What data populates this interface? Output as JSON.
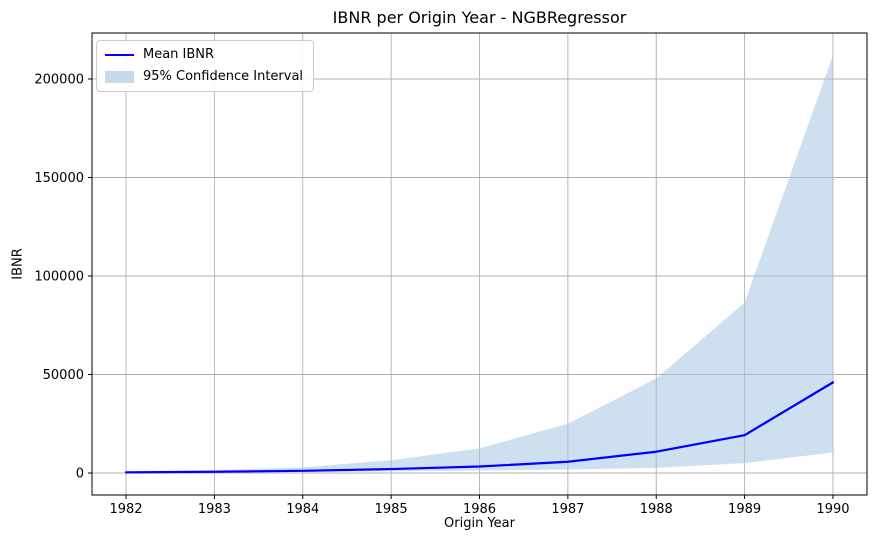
{
  "title": "IBNR per Origin Year - NGBRegressor",
  "xlabel": "Origin Year",
  "ylabel": "IBNR",
  "legend": {
    "items": [
      {
        "label": "Mean IBNR",
        "type": "line",
        "color": "#0000ff"
      },
      {
        "label": "95% Confidence Interval",
        "type": "patch",
        "color": "#c6dbea"
      }
    ],
    "position": "upper left"
  },
  "colors": {
    "mean_line": "#0000ff",
    "ci_band": "rgba(165,198,226,0.55)",
    "ci_legend_patch": "#c6dbea",
    "grid": "#b0b0b0",
    "spine": "#000000",
    "background": "#ffffff"
  },
  "chart_data": {
    "type": "line",
    "title": "IBNR per Origin Year - NGBRegressor",
    "xlabel": "Origin Year",
    "ylabel": "IBNR",
    "x": [
      1982,
      1983,
      1984,
      1985,
      1986,
      1987,
      1988,
      1989,
      1990
    ],
    "series": [
      {
        "name": "Mean IBNR",
        "values": [
          300,
          650,
          1100,
          2000,
          3300,
          5700,
          10800,
          19200,
          46000
        ]
      },
      {
        "name": "95% CI lower",
        "values": [
          150,
          300,
          500,
          850,
          1300,
          1800,
          2600,
          5000,
          10400
        ]
      },
      {
        "name": "95% CI upper",
        "values": [
          600,
          1400,
          2900,
          6500,
          12500,
          25000,
          48000,
          86500,
          212000
        ]
      }
    ],
    "xticks": [
      1982,
      1983,
      1984,
      1985,
      1986,
      1987,
      1988,
      1989,
      1990
    ],
    "yticks": [
      0,
      50000,
      100000,
      150000,
      200000
    ],
    "xlim": [
      1981.615,
      1990.385
    ],
    "ylim": [
      -11168,
      223350
    ],
    "grid": true,
    "legend_position": "upper left"
  }
}
